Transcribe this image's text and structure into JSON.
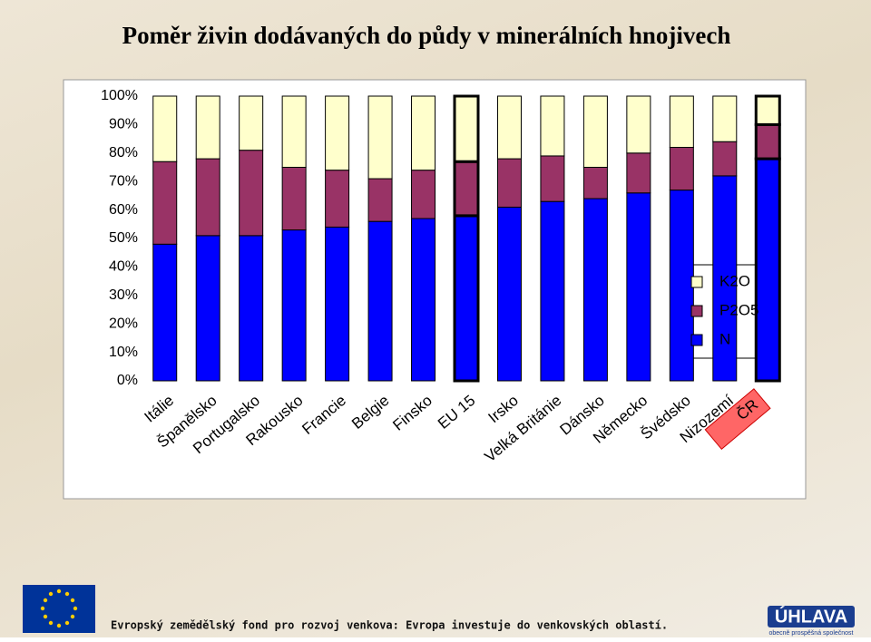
{
  "chart_data": {
    "type": "stacked-bar",
    "title": "Poměr živin dodávaných do půdy v minerálních hnojivech",
    "categories": [
      "Itálie",
      "Španělsko",
      "Portugalsko",
      "Rakousko",
      "Francie",
      "Belgie",
      "Finsko",
      "EU 15",
      "Irsko",
      "Velká Británie",
      "Dánsko",
      "Německo",
      "Švédsko",
      "Nizozemí",
      "ČR"
    ],
    "series": [
      {
        "name": "N",
        "color": "#0000ff",
        "values": [
          48,
          51,
          51,
          53,
          54,
          56,
          57,
          58,
          61,
          63,
          64,
          66,
          67,
          72,
          78
        ]
      },
      {
        "name": "P2O5",
        "color": "#993366",
        "values": [
          29,
          27,
          30,
          22,
          20,
          15,
          17,
          19,
          17,
          16,
          11,
          14,
          15,
          12,
          12
        ]
      },
      {
        "name": "K2O",
        "color": "#ffffcc",
        "values": [
          23,
          22,
          19,
          25,
          26,
          29,
          26,
          23,
          22,
          21,
          25,
          20,
          18,
          16,
          10
        ]
      }
    ],
    "ylim": [
      0,
      100
    ],
    "yticks": [
      {
        "value": 0,
        "label": "0%"
      },
      {
        "value": 10,
        "label": "10%"
      },
      {
        "value": 20,
        "label": "20%"
      },
      {
        "value": 30,
        "label": "30%"
      },
      {
        "value": 40,
        "label": "40%"
      },
      {
        "value": 50,
        "label": "50%"
      },
      {
        "value": 60,
        "label": "60%"
      },
      {
        "value": 70,
        "label": "70%"
      },
      {
        "value": 80,
        "label": "80%"
      },
      {
        "value": 90,
        "label": "90%"
      },
      {
        "value": 100,
        "label": "100%"
      }
    ],
    "legend": "right"
  },
  "footer": {
    "text": "Evropský zemědělský fond pro rozvoj venkova: Evropa investuje do venkovských oblastí.",
    "logo": "ÚHLAVA",
    "logo_subtitle": "obecně prospěšná společnost"
  }
}
